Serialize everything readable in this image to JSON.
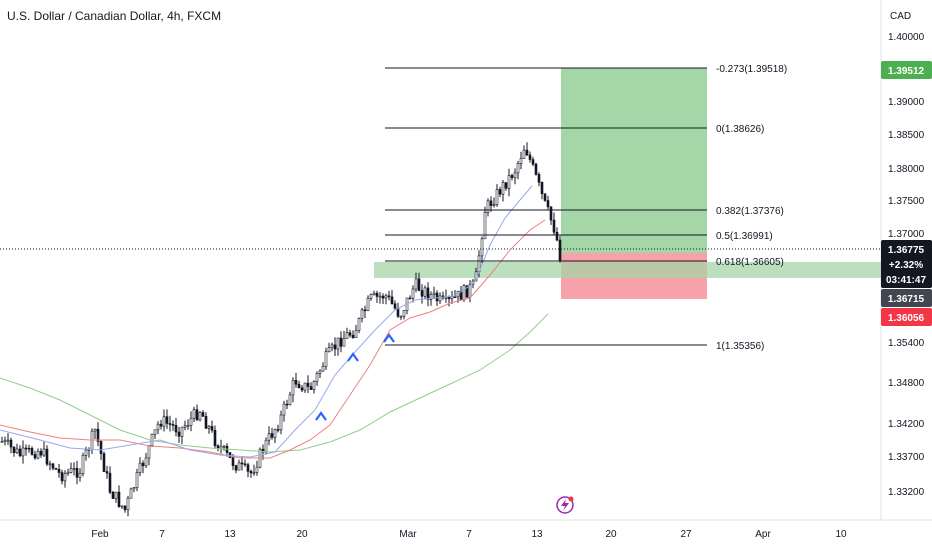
{
  "header": {
    "title": "U.S. Dollar / Canadian Dollar, 4h, FXCM"
  },
  "chart_data": {
    "type": "candlestick",
    "symbol": "USDCAD",
    "timeframe": "4h",
    "currency": "CAD",
    "y_ticks": [
      "1.40000",
      "1.39000",
      "1.38500",
      "1.38000",
      "1.37500",
      "1.37000",
      "1.35400",
      "1.34800",
      "1.34200",
      "1.33700",
      "1.33200"
    ],
    "x_ticks": [
      "Feb",
      "7",
      "13",
      "20",
      "Mar",
      "7",
      "13",
      "20",
      "27",
      "Apr",
      "10"
    ],
    "fib_levels": [
      {
        "label": "-0.273(1.39518)",
        "value": 1.39518
      },
      {
        "label": "0(1.38626)",
        "value": 1.38626
      },
      {
        "label": "0.382(1.37376)",
        "value": 1.37376
      },
      {
        "label": "0.5(1.36991)",
        "value": 1.36991
      },
      {
        "label": "0.618(1.36605)",
        "value": 1.36605
      },
      {
        "label": "1(1.35356)",
        "value": 1.35356
      }
    ],
    "price_badges": [
      {
        "text": "1.39512",
        "color": "#4caf50"
      },
      {
        "text": "1.36775",
        "color": "#131722"
      },
      {
        "text": "+2.32%",
        "color": "#131722"
      },
      {
        "text": "03:41:47",
        "color": "#131722"
      },
      {
        "text": "1.36715",
        "color": "#434651"
      },
      {
        "text": "1.36056",
        "color": "#f23645"
      }
    ],
    "position_tool": {
      "entry": 1.36715,
      "take_profit": 1.39512,
      "stop_loss": 1.36056,
      "profit_color": "#a5d6a7",
      "loss_color": "#f7a1ab"
    },
    "moving_averages": [
      {
        "color": "#9aa8ec"
      },
      {
        "color": "#ef8080"
      },
      {
        "color": "#8fcf8f"
      }
    ],
    "up_candle_color": "#131722",
    "down_candle_color": "#131722"
  }
}
